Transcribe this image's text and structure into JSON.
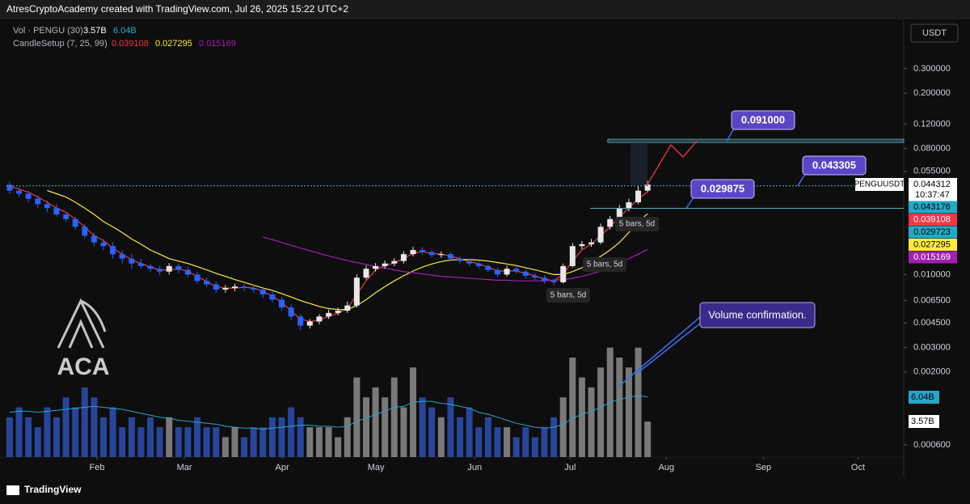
{
  "header": "AtresCryptoAcademy created with TradingView.com, Jul 26, 2025 15:22 UTC+2",
  "footer": "TradingView",
  "logo": "ACA",
  "chart_data": {
    "type": "candlestick",
    "symbol": "PENGUUSDT",
    "currency": "USDT",
    "countdown": "10:37:47",
    "volume_legend": "Vol · PENGU (30)",
    "ma_legend": "CandleSetup (7, 25, 99)",
    "log_scale": true,
    "ylim": [
      0.00049,
      0.668
    ],
    "xlim": [
      -0.34,
      95.3
    ],
    "vlim": [
      0,
      43.9
    ],
    "yticks": [
      {
        "value": 0.3,
        "label": "0.300000"
      },
      {
        "value": 0.2,
        "label": "0.200000"
      },
      {
        "value": 0.12,
        "label": "0.120000"
      },
      {
        "value": 0.08,
        "label": "0.080000"
      },
      {
        "value": 0.055,
        "label": "0.055000"
      },
      {
        "value": 0.01,
        "label": "0.010000"
      },
      {
        "value": 0.0065,
        "label": "0.006500"
      },
      {
        "value": 0.0045,
        "label": "0.004500"
      },
      {
        "value": 0.003,
        "label": "0.003000"
      },
      {
        "value": 0.002,
        "label": "0.002000"
      },
      {
        "value": 0.0006,
        "label": "0.000600"
      }
    ],
    "xticks": [
      {
        "value": 9.31,
        "label": "Feb"
      },
      {
        "value": 18.62,
        "label": "Mar"
      },
      {
        "value": 29.05,
        "label": "Apr"
      },
      {
        "value": 39.05,
        "label": "May"
      },
      {
        "value": 49.57,
        "label": "Jun"
      },
      {
        "value": 59.74,
        "label": "Jul"
      },
      {
        "value": 70.0,
        "label": "Aug"
      },
      {
        "value": 80.34,
        "label": "Sep"
      },
      {
        "value": 90.43,
        "label": "Oct"
      }
    ],
    "up_color": "#e8e8e8",
    "down_color": "#2962ff",
    "open": [
      0.044,
      0.04,
      0.038,
      0.035,
      0.032,
      0.03,
      0.027,
      0.025,
      0.022,
      0.019,
      0.017,
      0.016,
      0.014,
      0.013,
      0.012,
      0.0115,
      0.011,
      0.0105,
      0.0115,
      0.0108,
      0.01,
      0.009,
      0.0085,
      0.0078,
      0.008,
      0.0082,
      0.008,
      0.0078,
      0.0072,
      0.0066,
      0.0058,
      0.005,
      0.0043,
      0.0046,
      0.005,
      0.0053,
      0.0055,
      0.006,
      0.0095,
      0.011,
      0.0115,
      0.012,
      0.0125,
      0.014,
      0.015,
      0.0145,
      0.0138,
      0.014,
      0.013,
      0.0125,
      0.012,
      0.0115,
      0.0108,
      0.01,
      0.011,
      0.0105,
      0.0098,
      0.0095,
      0.009,
      0.0088,
      0.0115,
      0.016,
      0.0165,
      0.017,
      0.022,
      0.025,
      0.03,
      0.033,
      0.04
    ],
    "high": [
      0.046,
      0.042,
      0.04,
      0.037,
      0.034,
      0.032,
      0.028,
      0.026,
      0.023,
      0.02,
      0.018,
      0.017,
      0.015,
      0.014,
      0.013,
      0.012,
      0.0116,
      0.0121,
      0.012,
      0.0113,
      0.0105,
      0.0095,
      0.0089,
      0.0084,
      0.0086,
      0.0086,
      0.0084,
      0.0082,
      0.0076,
      0.0069,
      0.0061,
      0.0052,
      0.0048,
      0.0052,
      0.0056,
      0.0058,
      0.0064,
      0.01,
      0.0116,
      0.0121,
      0.0126,
      0.0131,
      0.0147,
      0.0158,
      0.0157,
      0.015,
      0.0146,
      0.0145,
      0.0135,
      0.013,
      0.0125,
      0.0119,
      0.0112,
      0.0116,
      0.0114,
      0.0109,
      0.0102,
      0.0099,
      0.0093,
      0.012,
      0.0168,
      0.0174,
      0.018,
      0.0232,
      0.0263,
      0.0316,
      0.035,
      0.043,
      0.047
    ],
    "low": [
      0.038,
      0.036,
      0.033,
      0.03,
      0.028,
      0.026,
      0.024,
      0.021,
      0.018,
      0.016,
      0.015,
      0.013,
      0.012,
      0.011,
      0.011,
      0.0104,
      0.0099,
      0.01,
      0.0102,
      0.0095,
      0.0086,
      0.0081,
      0.0074,
      0.0074,
      0.0076,
      0.0076,
      0.0074,
      0.0068,
      0.0063,
      0.0055,
      0.0047,
      0.004,
      0.0041,
      0.0044,
      0.0048,
      0.0051,
      0.0053,
      0.0058,
      0.0092,
      0.0105,
      0.011,
      0.0115,
      0.012,
      0.0135,
      0.0138,
      0.0132,
      0.0132,
      0.0125,
      0.012,
      0.0115,
      0.011,
      0.0104,
      0.0096,
      0.0097,
      0.0101,
      0.0094,
      0.0091,
      0.0086,
      0.0084,
      0.0086,
      0.0112,
      0.0152,
      0.0158,
      0.0165,
      0.021,
      0.024,
      0.0285,
      0.032,
      0.039
    ],
    "close": [
      0.04,
      0.038,
      0.035,
      0.032,
      0.03,
      0.027,
      0.025,
      0.022,
      0.019,
      0.017,
      0.016,
      0.014,
      0.013,
      0.012,
      0.0115,
      0.011,
      0.0105,
      0.0115,
      0.0108,
      0.01,
      0.009,
      0.0085,
      0.0078,
      0.008,
      0.0082,
      0.008,
      0.0078,
      0.0072,
      0.0066,
      0.0058,
      0.005,
      0.0043,
      0.0046,
      0.005,
      0.0053,
      0.0055,
      0.006,
      0.0095,
      0.011,
      0.0115,
      0.012,
      0.0125,
      0.014,
      0.015,
      0.0145,
      0.0138,
      0.014,
      0.013,
      0.0125,
      0.012,
      0.0115,
      0.0108,
      0.01,
      0.011,
      0.0105,
      0.0098,
      0.0095,
      0.009,
      0.0088,
      0.0115,
      0.016,
      0.0165,
      0.017,
      0.022,
      0.025,
      0.03,
      0.033,
      0.04,
      0.044312
    ],
    "series": [
      {
        "color": "#f23645",
        "values": [
          0.043,
          0.041,
          0.039,
          0.036,
          0.033,
          0.03,
          0.028,
          0.025,
          0.022,
          0.019,
          0.0175,
          0.0155,
          0.014,
          0.0128,
          0.012,
          0.0113,
          0.0108,
          0.0108,
          0.011,
          0.0105,
          0.0097,
          0.0089,
          0.0082,
          0.008,
          0.008,
          0.0081,
          0.008,
          0.0076,
          0.007,
          0.0063,
          0.0055,
          0.0048,
          0.0046,
          0.0047,
          0.005,
          0.0053,
          0.0057,
          0.0072,
          0.009,
          0.0108,
          0.0116,
          0.0121,
          0.013,
          0.0142,
          0.0146,
          0.0142,
          0.014,
          0.0136,
          0.013,
          0.0124,
          0.0119,
          0.0113,
          0.0106,
          0.0106,
          0.0106,
          0.0102,
          0.0098,
          0.0093,
          0.009,
          0.01,
          0.0125,
          0.015,
          0.0165,
          0.019,
          0.022,
          0.026,
          0.03,
          0.035,
          0.039108
        ]
      },
      {
        "color": "#ffeb3b",
        "values": [
          null,
          null,
          null,
          null,
          0.04,
          0.038,
          0.036,
          0.033,
          0.03,
          0.027,
          0.024,
          0.022,
          0.02,
          0.018,
          0.0165,
          0.015,
          0.014,
          0.013,
          0.0125,
          0.012,
          0.0114,
          0.0108,
          0.0102,
          0.0097,
          0.0092,
          0.0088,
          0.0084,
          0.008,
          0.0077,
          0.0073,
          0.0069,
          0.0065,
          0.0062,
          0.0059,
          0.0057,
          0.0056,
          0.0056,
          0.006,
          0.0066,
          0.0074,
          0.0082,
          0.009,
          0.0098,
          0.0106,
          0.0113,
          0.0119,
          0.0124,
          0.0127,
          0.0128,
          0.0128,
          0.0127,
          0.0125,
          0.0122,
          0.0119,
          0.0116,
          0.0112,
          0.0108,
          0.0104,
          0.01,
          0.01,
          0.0105,
          0.0112,
          0.0122,
          0.0135,
          0.015,
          0.017,
          0.02,
          0.024,
          0.027295
        ]
      },
      {
        "color": "#a020b0",
        "values": [
          null,
          null,
          null,
          null,
          null,
          null,
          null,
          null,
          null,
          null,
          null,
          null,
          null,
          null,
          null,
          null,
          null,
          null,
          null,
          null,
          null,
          null,
          null,
          null,
          null,
          null,
          null,
          0.0186,
          0.0178,
          0.017,
          0.0162,
          0.0155,
          0.0148,
          0.0142,
          0.0136,
          0.0131,
          0.0126,
          0.0122,
          0.0118,
          0.0114,
          0.0111,
          0.0108,
          0.0105,
          0.0103,
          0.0101,
          0.0099,
          0.0097,
          0.0096,
          0.0095,
          0.0094,
          0.0093,
          0.0092,
          0.0091,
          0.0091,
          0.009,
          0.009,
          0.009,
          0.009,
          0.0091,
          0.0092,
          0.0094,
          0.0097,
          0.0101,
          0.0106,
          0.0113,
          0.0121,
          0.013,
          0.014,
          0.015169
        ]
      }
    ],
    "volume": {
      "up_color": "#8c8c8c",
      "down_color": "#2b4fb4",
      "values": [
        4,
        5,
        4,
        3,
        5,
        4,
        6,
        5,
        7,
        6,
        4,
        5,
        3,
        4,
        3,
        4,
        3,
        4,
        3,
        3,
        4,
        3,
        3,
        2,
        3,
        2,
        3,
        3,
        4,
        4,
        5,
        4,
        3,
        3,
        3,
        2,
        4,
        8,
        6,
        7,
        6,
        8,
        5,
        9,
        6,
        5,
        4,
        6,
        4,
        5,
        3,
        4,
        3,
        3,
        2,
        3,
        2,
        3,
        4,
        6,
        10,
        8,
        7,
        9,
        11,
        10,
        9,
        11,
        3.57
      ],
      "value_labels": [
        null,
        null,
        null,
        null,
        null,
        null,
        null,
        null,
        null,
        null,
        null,
        null,
        null,
        null,
        null,
        null,
        null,
        null,
        null,
        null,
        null,
        null,
        null,
        null,
        null,
        null,
        null,
        null,
        null,
        null,
        null,
        null,
        null,
        null,
        null,
        null,
        null,
        null,
        null,
        null,
        null,
        null,
        null,
        null,
        null,
        null,
        null,
        null,
        null,
        null,
        null,
        null,
        null,
        null,
        null,
        null,
        null,
        null,
        null,
        null,
        null,
        null,
        null,
        null,
        null,
        null,
        null,
        null,
        "3.57B"
      ]
    },
    "volume_ma": {
      "color": "#26a6c8",
      "values": [
        4.5,
        4.6,
        4.6,
        4.5,
        4.6,
        4.7,
        4.8,
        4.9,
        5.0,
        5.1,
        5.0,
        4.9,
        4.8,
        4.6,
        4.4,
        4.2,
        4.0,
        3.9,
        3.7,
        3.6,
        3.5,
        3.4,
        3.3,
        3.1,
        3.0,
        2.9,
        2.9,
        2.8,
        2.9,
        3.0,
        3.1,
        3.2,
        3.2,
        3.1,
        3.1,
        3.0,
        3.1,
        3.6,
        3.9,
        4.3,
        4.6,
        5.0,
        5.1,
        5.5,
        5.6,
        5.6,
        5.4,
        5.3,
        5.1,
        4.9,
        4.5,
        4.3,
        4.0,
        3.7,
        3.4,
        3.2,
        3.0,
        2.9,
        3.0,
        3.3,
        3.9,
        4.3,
        4.6,
        5.0,
        5.5,
        5.8,
        6.0,
        6.2,
        6.04
      ],
      "value_labels": [
        null,
        null,
        null,
        null,
        null,
        null,
        null,
        null,
        null,
        null,
        null,
        null,
        null,
        null,
        null,
        null,
        null,
        null,
        null,
        null,
        null,
        null,
        null,
        null,
        null,
        null,
        null,
        null,
        null,
        null,
        null,
        null,
        null,
        null,
        null,
        null,
        null,
        null,
        null,
        null,
        null,
        null,
        null,
        null,
        null,
        null,
        null,
        null,
        null,
        null,
        null,
        null,
        null,
        null,
        null,
        null,
        null,
        null,
        null,
        null,
        null,
        null,
        null,
        null,
        null,
        null,
        null,
        null,
        "6.04B"
      ]
    },
    "tags": {
      "color": "#22abc8",
      "values": [
        0.043176,
        0.029723
      ]
    },
    "levels": [
      {
        "value": 0.091,
        "label": "0.091000"
      },
      {
        "value": 0.043305,
        "label": "0.043305"
      },
      {
        "value": 0.029875,
        "label": "0.029875"
      }
    ],
    "bar_notes": [
      "5 bars, 5d",
      "5 bars, 5d",
      "5 bars, 5d"
    ],
    "annotation": "Volume confirmation."
  }
}
